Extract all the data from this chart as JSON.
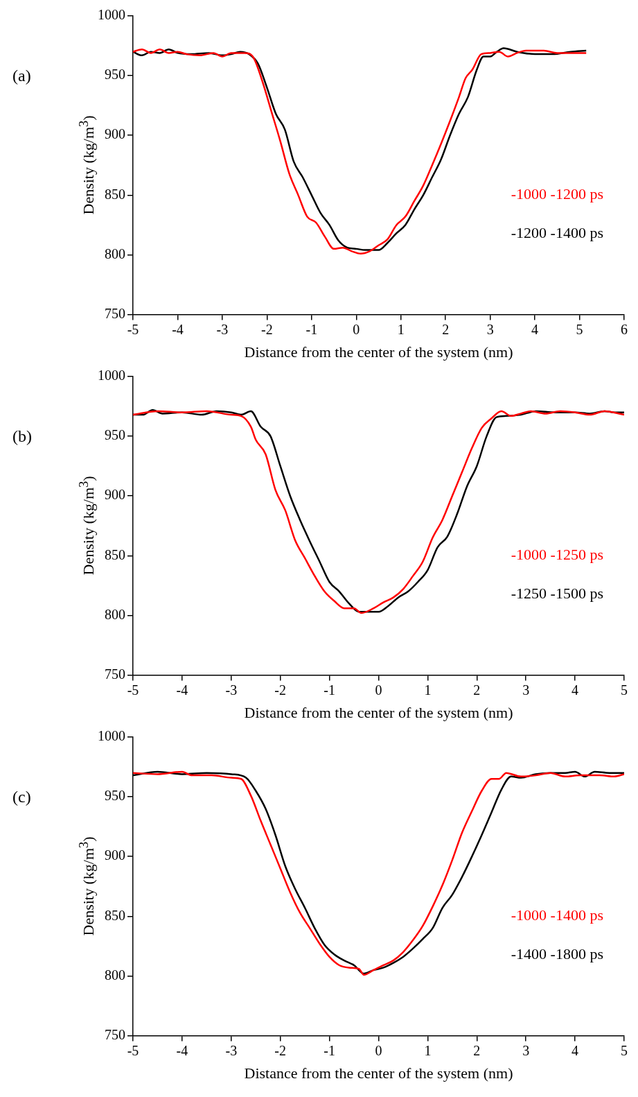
{
  "chart_data": [
    {
      "type": "line",
      "title": "(a)",
      "xlabel": "Distance from the center of the system (nm)",
      "ylabel": "Density (kg/m$^{3}$)",
      "xlim": [
        -5,
        6
      ],
      "xticks": [
        -5,
        -4,
        -3,
        -2,
        -1,
        0,
        1,
        2,
        3,
        4,
        5,
        6
      ],
      "ylim": [
        750,
        1000
      ],
      "yticks": [
        750,
        800,
        850,
        900,
        950,
        1000
      ],
      "legend": "right",
      "marker": "none",
      "series": [
        {
          "name": "-1000 -1200 ps",
          "color": "#ff0000",
          "x": [
            -5,
            -4.8,
            -4.6,
            -4.4,
            -4.2,
            -4,
            -3.8,
            -3.5,
            -3.2,
            -3,
            -2.8,
            -2.5,
            -2.3,
            -2.1,
            -1.9,
            -1.7,
            -1.5,
            -1.3,
            -1.1,
            -0.9,
            -0.7,
            -0.5,
            -0.3,
            -0.1,
            0.1,
            0.3,
            0.5,
            0.7,
            0.9,
            1.1,
            1.3,
            1.5,
            1.7,
            1.9,
            2.1,
            2.3,
            2.45,
            2.6,
            2.8,
            3,
            3.2,
            3.4,
            3.6,
            3.8,
            4.2,
            4.5,
            5.15
          ],
          "values": [
            970,
            972,
            969,
            972,
            969,
            970,
            968,
            967,
            969,
            966,
            969,
            969,
            965,
            945,
            920,
            895,
            868,
            850,
            832,
            827,
            815,
            805,
            806,
            803,
            801,
            803,
            808,
            813,
            825,
            832,
            845,
            858,
            875,
            893,
            912,
            932,
            948,
            955,
            968,
            969,
            970,
            966,
            969,
            971,
            971,
            969,
            969
          ]
        },
        {
          "name": "-1200 -1400 ps",
          "color": "#000000",
          "x": [
            -5,
            -4.8,
            -4.6,
            -4.4,
            -4.2,
            -4,
            -3.7,
            -3.3,
            -3,
            -2.8,
            -2.6,
            -2.4,
            -2.2,
            -2,
            -1.8,
            -1.6,
            -1.4,
            -1.2,
            -1,
            -0.8,
            -0.6,
            -0.4,
            -0.2,
            0,
            0.2,
            0.5,
            0.7,
            0.9,
            1.1,
            1.3,
            1.5,
            1.7,
            1.9,
            2.1,
            2.3,
            2.5,
            2.7,
            2.85,
            3,
            3.15,
            3.3,
            3.6,
            4,
            4.4,
            4.8,
            5.15
          ],
          "values": [
            970,
            967,
            970,
            969,
            972,
            969,
            968,
            969,
            967,
            968,
            970,
            968,
            960,
            940,
            918,
            905,
            878,
            865,
            850,
            835,
            825,
            812,
            806,
            805,
            804,
            804,
            810,
            818,
            825,
            838,
            850,
            865,
            880,
            900,
            918,
            932,
            955,
            966,
            966,
            970,
            973,
            970,
            968,
            968,
            970,
            971
          ]
        }
      ]
    },
    {
      "type": "line",
      "title": "(b)",
      "xlabel": "Distance from the center of the system (nm)",
      "ylabel": "Density (kg/m$^{3}$)",
      "xlim": [
        -5,
        5
      ],
      "xticks": [
        -5,
        -4,
        -3,
        -2,
        -1,
        0,
        1,
        2,
        3,
        4,
        5
      ],
      "ylim": [
        750,
        1000
      ],
      "yticks": [
        750,
        800,
        850,
        900,
        950,
        1000
      ],
      "legend": "right",
      "marker": "none",
      "series": [
        {
          "name": "-1000 -1250 ps",
          "color": "#ff0000",
          "x": [
            -5,
            -4.5,
            -4,
            -3.5,
            -3,
            -2.8,
            -2.6,
            -2.5,
            -2.3,
            -2.1,
            -1.9,
            -1.7,
            -1.5,
            -1.3,
            -1.1,
            -0.9,
            -0.7,
            -0.5,
            -0.35,
            -0.1,
            0.1,
            0.3,
            0.5,
            0.7,
            0.9,
            1.1,
            1.3,
            1.5,
            1.7,
            1.9,
            2.1,
            2.3,
            2.5,
            2.7,
            2.9,
            3.1,
            3.4,
            3.7,
            4,
            4.3,
            4.6,
            5
          ],
          "values": [
            968,
            971,
            970,
            971,
            968,
            967,
            958,
            947,
            935,
            905,
            888,
            863,
            848,
            833,
            820,
            812,
            806,
            806,
            802,
            806,
            811,
            815,
            822,
            833,
            845,
            865,
            880,
            900,
            920,
            940,
            957,
            965,
            971,
            967,
            969,
            971,
            969,
            971,
            970,
            968,
            971,
            968
          ]
        },
        {
          "name": "-1250 -1500 ps",
          "color": "#000000",
          "x": [
            -5,
            -4.8,
            -4.6,
            -4.4,
            -4,
            -3.6,
            -3.3,
            -3,
            -2.8,
            -2.6,
            -2.4,
            -2.2,
            -2,
            -1.8,
            -1.6,
            -1.4,
            -1.2,
            -1,
            -0.8,
            -0.6,
            -0.4,
            -0.2,
            0,
            0.2,
            0.4,
            0.6,
            0.8,
            1,
            1.2,
            1.4,
            1.6,
            1.8,
            2,
            2.2,
            2.4,
            2.6,
            2.9,
            3.2,
            3.6,
            4,
            4.3,
            4.6,
            4.8,
            5
          ],
          "values": [
            968,
            968,
            972,
            969,
            970,
            968,
            971,
            970,
            968,
            971,
            958,
            950,
            925,
            900,
            880,
            862,
            845,
            828,
            820,
            810,
            803,
            803,
            803,
            808,
            815,
            820,
            828,
            838,
            857,
            866,
            885,
            908,
            925,
            950,
            966,
            967,
            968,
            971,
            970,
            970,
            969,
            971,
            970,
            970
          ]
        }
      ]
    },
    {
      "type": "line",
      "title": "(c)",
      "xlabel": "Distance from the center of the system (nm)",
      "ylabel": "Density (kg/m$^{3}$)",
      "xlim": [
        -5,
        5
      ],
      "xticks": [
        -5,
        -4,
        -3,
        -2,
        -1,
        0,
        1,
        2,
        3,
        4,
        5
      ],
      "ylim": [
        750,
        1000
      ],
      "yticks": [
        750,
        800,
        850,
        900,
        950,
        1000
      ],
      "legend": "right",
      "marker": "none",
      "series": [
        {
          "name": "-1000 -1400 ps",
          "color": "#ff0000",
          "x": [
            -5,
            -4.5,
            -4,
            -3.8,
            -3.4,
            -3,
            -2.8,
            -2.6,
            -2.4,
            -2.2,
            -2,
            -1.8,
            -1.6,
            -1.4,
            -1.2,
            -1,
            -0.8,
            -0.6,
            -0.4,
            -0.3,
            -0.1,
            0.1,
            0.3,
            0.5,
            0.7,
            0.9,
            1.1,
            1.3,
            1.5,
            1.7,
            1.9,
            2.1,
            2.3,
            2.45,
            2.6,
            2.9,
            3.2,
            3.5,
            3.8,
            4.1,
            4.5,
            4.8,
            5
          ],
          "values": [
            970,
            969,
            971,
            968,
            968,
            966,
            965,
            951,
            930,
            910,
            890,
            870,
            853,
            840,
            827,
            816,
            809,
            807,
            806,
            801,
            805,
            809,
            813,
            820,
            830,
            842,
            858,
            876,
            897,
            920,
            938,
            955,
            965,
            965,
            970,
            967,
            968,
            970,
            967,
            968,
            968,
            967,
            969
          ]
        },
        {
          "name": "-1400 -1800 ps",
          "color": "#000000",
          "x": [
            -5,
            -4.5,
            -4,
            -3.5,
            -3,
            -2.7,
            -2.5,
            -2.3,
            -2.1,
            -1.9,
            -1.7,
            -1.5,
            -1.3,
            -1.1,
            -0.9,
            -0.7,
            -0.5,
            -0.3,
            -0.1,
            0.1,
            0.3,
            0.5,
            0.7,
            0.9,
            1.1,
            1.3,
            1.5,
            1.7,
            1.9,
            2.1,
            2.3,
            2.5,
            2.7,
            2.9,
            3.2,
            3.5,
            3.8,
            4,
            4.2,
            4.4,
            4.7,
            5
          ],
          "values": [
            968,
            971,
            969,
            970,
            969,
            966,
            955,
            940,
            918,
            892,
            873,
            857,
            840,
            826,
            818,
            813,
            809,
            802,
            805,
            807,
            811,
            816,
            823,
            831,
            840,
            857,
            868,
            883,
            900,
            918,
            937,
            956,
            967,
            966,
            969,
            970,
            970,
            971,
            967,
            971,
            970,
            970
          ]
        }
      ]
    }
  ]
}
